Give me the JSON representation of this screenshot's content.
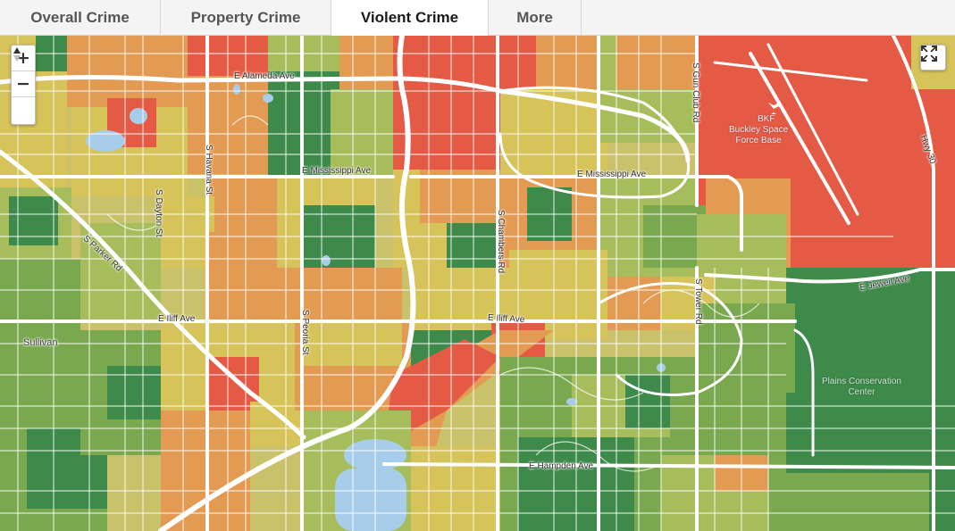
{
  "tabs": [
    {
      "label": "Overall Crime",
      "active": false
    },
    {
      "label": "Property Crime",
      "active": false
    },
    {
      "label": "Violent Crime",
      "active": true
    },
    {
      "label": "More",
      "active": false
    }
  ],
  "map_controls": {
    "zoom_in": "+",
    "zoom_out": "−",
    "reset_north": "▲▼"
  },
  "colors": {
    "dark_green": "#3e8a4a",
    "green": "#7aa84e",
    "light_green": "#a7bd5c",
    "yellow": "#d6c35a",
    "orange": "#e39a52",
    "red": "#e45a45",
    "water": "#a7cdea",
    "road": "#ffffff"
  },
  "map_labels": {
    "alameda": "E Alameda Ave",
    "mississippi_w": "E Mississippi Ave",
    "mississippi_e": "E Mississippi Ave",
    "iliff_w": "E Iliff Ave",
    "iliff_e": "E Iliff Ave",
    "jewell": "E Jewell Ave",
    "hampden": "E Hampden Ave",
    "havana": "S Havana St",
    "dayton": "S Dayton St",
    "parker": "S Parker Rd",
    "peoria": "S Peoria St",
    "chambers": "S Chambers Rd",
    "tower": "S Tower Rd",
    "gun_club": "S Gun Club Rd",
    "hwy30": "Hwy 30",
    "sullivan": "Sullivan",
    "bkf": "BKF",
    "buckley": "Buckley Space\nForce Base",
    "plains": "Plains Conservation\nCenter"
  }
}
